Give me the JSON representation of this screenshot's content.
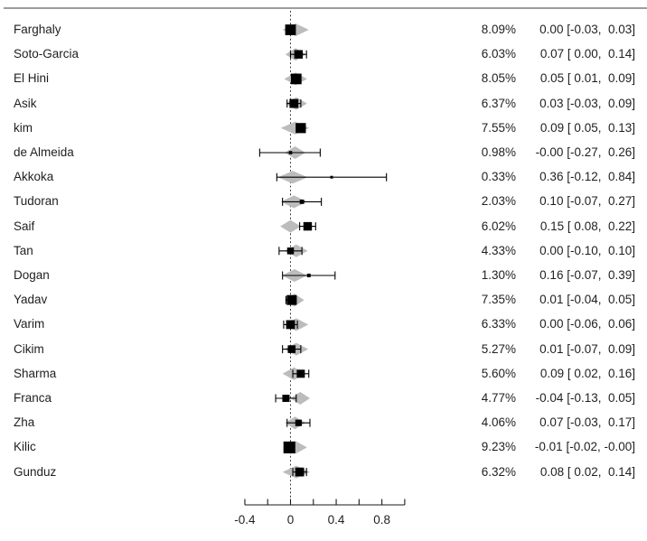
{
  "chart_data": {
    "type": "forest",
    "title": "",
    "x_axis": {
      "range": [
        -0.4,
        1.0
      ],
      "tick_values": [
        -0.4,
        -0.2,
        0,
        0.2,
        0.4,
        0.6,
        0.8,
        1.0
      ],
      "labeled_ticks": [
        {
          "value": -0.4,
          "label": "-0.4"
        },
        {
          "value": 0,
          "label": "0"
        },
        {
          "value": 0.4,
          "label": "0.4"
        },
        {
          "value": 0.8,
          "label": "0.8"
        }
      ],
      "zero_reference_line": 0
    },
    "studies": [
      {
        "name": "Farghaly",
        "weight_pct": 8.09,
        "weight_label": "8.09%",
        "estimate": 0.0,
        "ci_lower": -0.03,
        "ci_upper": 0.03,
        "ci_label": "0.00 [-0.03,  0.03]",
        "diamond_center": 0.045,
        "diamond_half_width": 0.115
      },
      {
        "name": "Soto-Garcia",
        "weight_pct": 6.03,
        "weight_label": "6.03%",
        "estimate": 0.07,
        "ci_lower": 0.0,
        "ci_upper": 0.14,
        "ci_label": "0.07 [ 0.00,  0.14]",
        "diamond_center": 0.045,
        "diamond_half_width": 0.09
      },
      {
        "name": "El Hini",
        "weight_pct": 8.05,
        "weight_label": "8.05%",
        "estimate": 0.05,
        "ci_lower": 0.01,
        "ci_upper": 0.09,
        "ci_label": "0.05 [ 0.01,  0.09]",
        "diamond_center": 0.045,
        "diamond_half_width": 0.1
      },
      {
        "name": "Asik",
        "weight_pct": 6.37,
        "weight_label": "6.37%",
        "estimate": 0.03,
        "ci_lower": -0.03,
        "ci_upper": 0.09,
        "ci_label": "0.03 [-0.03,  0.09]",
        "diamond_center": 0.05,
        "diamond_half_width": 0.095
      },
      {
        "name": "kim",
        "weight_pct": 7.55,
        "weight_label": "7.55%",
        "estimate": 0.09,
        "ci_lower": 0.05,
        "ci_upper": 0.13,
        "ci_label": "0.09 [ 0.05,  0.13]",
        "diamond_center": 0.04,
        "diamond_half_width": 0.125
      },
      {
        "name": "de Almeida",
        "weight_pct": 0.98,
        "weight_label": "0.98%",
        "estimate": 0.0,
        "ci_lower": -0.27,
        "ci_upper": 0.26,
        "ci_label": "-0.00 [-0.27,  0.26]",
        "diamond_center": 0.04,
        "diamond_half_width": 0.09
      },
      {
        "name": "Akkoka",
        "weight_pct": 0.33,
        "weight_label": "0.33%",
        "estimate": 0.36,
        "ci_lower": -0.12,
        "ci_upper": 0.84,
        "ci_label": "0.36 [-0.12,  0.84]",
        "diamond_center": 0.02,
        "diamond_half_width": 0.13
      },
      {
        "name": "Tudoran",
        "weight_pct": 2.03,
        "weight_label": "2.03%",
        "estimate": 0.1,
        "ci_lower": -0.07,
        "ci_upper": 0.27,
        "ci_label": "0.10 [-0.07,  0.27]",
        "diamond_center": 0.03,
        "diamond_half_width": 0.115
      },
      {
        "name": "Saif",
        "weight_pct": 6.02,
        "weight_label": "6.02%",
        "estimate": 0.15,
        "ci_lower": 0.08,
        "ci_upper": 0.22,
        "ci_label": "0.15 [ 0.08,  0.22]",
        "diamond_center": 0.0,
        "diamond_half_width": 0.09
      },
      {
        "name": "Tan",
        "weight_pct": 4.33,
        "weight_label": "4.33%",
        "estimate": 0.0,
        "ci_lower": -0.1,
        "ci_upper": 0.1,
        "ci_label": "0.00 [-0.10,  0.10]",
        "diamond_center": 0.05,
        "diamond_half_width": 0.1
      },
      {
        "name": "Dogan",
        "weight_pct": 1.3,
        "weight_label": "1.30%",
        "estimate": 0.16,
        "ci_lower": -0.07,
        "ci_upper": 0.39,
        "ci_label": "0.16 [-0.07,  0.39]",
        "diamond_center": 0.035,
        "diamond_half_width": 0.11
      },
      {
        "name": "Yadav",
        "weight_pct": 7.35,
        "weight_label": "7.35%",
        "estimate": 0.01,
        "ci_lower": -0.04,
        "ci_upper": 0.05,
        "ci_label": "0.01 [-0.04,  0.05]",
        "diamond_center": 0.035,
        "diamond_half_width": 0.085
      },
      {
        "name": "Varim",
        "weight_pct": 6.33,
        "weight_label": "6.33%",
        "estimate": 0.0,
        "ci_lower": -0.06,
        "ci_upper": 0.06,
        "ci_label": "0.00 [-0.06,  0.06]",
        "diamond_center": 0.05,
        "diamond_half_width": 0.105
      },
      {
        "name": "Cikim",
        "weight_pct": 5.27,
        "weight_label": "5.27%",
        "estimate": 0.01,
        "ci_lower": -0.07,
        "ci_upper": 0.09,
        "ci_label": "0.01 [-0.07,  0.09]",
        "diamond_center": 0.05,
        "diamond_half_width": 0.105
      },
      {
        "name": "Sharma",
        "weight_pct": 5.6,
        "weight_label": "5.60%",
        "estimate": 0.09,
        "ci_lower": 0.02,
        "ci_upper": 0.16,
        "ci_label": "0.09 [ 0.02,  0.16]",
        "diamond_center": 0.03,
        "diamond_half_width": 0.1
      },
      {
        "name": "Franca",
        "weight_pct": 4.77,
        "weight_label": "4.77%",
        "estimate": -0.04,
        "ci_lower": -0.13,
        "ci_upper": 0.05,
        "ci_label": "-0.04 [-0.13,  0.05]",
        "diamond_center": 0.085,
        "diamond_half_width": 0.085
      },
      {
        "name": "Zha",
        "weight_pct": 4.06,
        "weight_label": "4.06%",
        "estimate": 0.07,
        "ci_lower": -0.03,
        "ci_upper": 0.17,
        "ci_label": "0.07 [-0.03,  0.17]",
        "diamond_center": 0.04,
        "diamond_half_width": 0.09
      },
      {
        "name": "Kilic",
        "weight_pct": 9.23,
        "weight_label": "9.23%",
        "estimate": -0.01,
        "ci_lower": -0.02,
        "ci_upper": 0.0,
        "ci_label": "-0.01 [-0.02, -0.00]",
        "diamond_center": 0.045,
        "diamond_half_width": 0.1
      },
      {
        "name": "Gunduz",
        "weight_pct": 6.32,
        "weight_label": "6.32%",
        "estimate": 0.08,
        "ci_lower": 0.02,
        "ci_upper": 0.14,
        "ci_label": "0.08 [ 0.02,  0.14]",
        "diamond_center": 0.05,
        "diamond_half_width": 0.12
      }
    ]
  },
  "colors": {
    "diamond_fill": "#bcbcbc",
    "marker": "#000000",
    "whisker": "#000000",
    "axis": "#1a1a1a",
    "zero_line": "#333333",
    "top_rule": "#9c9c9c",
    "text": "#1f1f1f"
  }
}
